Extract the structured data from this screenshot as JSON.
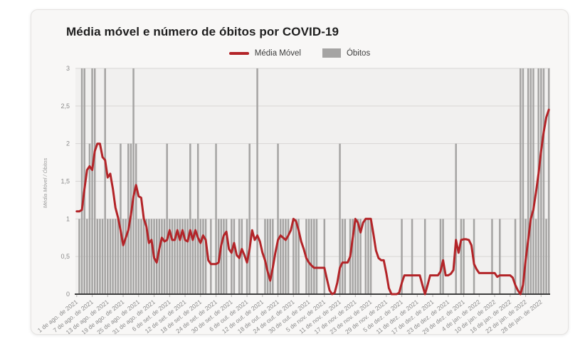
{
  "legend": {
    "items": [
      {
        "label": "Média Móvel",
        "swatch": "line",
        "color": "#b32428"
      },
      {
        "label": "Óbitos",
        "swatch": "bar",
        "color": "#a5a4a3"
      }
    ]
  },
  "chart_data": {
    "type": "mixed",
    "title": "Média móvel e número de óbitos por COVID-19",
    "xlabel": "",
    "ylabel": "Média Móvel / Óbitos",
    "ylim": [
      0,
      3
    ],
    "grid": "horizontal",
    "legend_position": "top",
    "yticks": [
      {
        "value": 0,
        "label": "0"
      },
      {
        "value": 0.5,
        "label": "0,5"
      },
      {
        "value": 1,
        "label": "1"
      },
      {
        "value": 1.5,
        "label": "1,5"
      },
      {
        "value": 2,
        "label": "2"
      },
      {
        "value": 2.5,
        "label": "2,5"
      },
      {
        "value": 3,
        "label": "3"
      }
    ],
    "x_tick_every": 6,
    "x_tick_labels": [
      "1 de ago. de 2021",
      "7 de ago. de 2021",
      "13 de ago. de 2021",
      "19 de ago. de 2021",
      "25 de ago. de 2021",
      "31 de ago. de 2021",
      "6 de set. de 2021",
      "12 de set. de 2021",
      "18 de set. de 2021",
      "24 de set. de 2021",
      "30 de set. de 2021",
      "6 de out. de 2021",
      "12 de out. de 2021",
      "18 de out. de 2021",
      "24 de out. de 2021",
      "30 de out. de 2021",
      "5 de nov. de 2021",
      "11 de nov. de 2021",
      "17 de nov. de 2021",
      "23 de nov. de 2021",
      "29 de nov. de 2021",
      "5 de dez. de 2021",
      "11 de dez. de 2021",
      "17 de dez. de 2021",
      "23 de dez. de 2021",
      "29 de dez. de 2021",
      "4 de jan. de 2022",
      "10 de jan. de 2022",
      "16 de jan. de 2022",
      "22 de jan. de 2022",
      "28 de jan. de 2022"
    ],
    "series": [
      {
        "name": "Média Móvel",
        "type": "line",
        "color": "#b32428",
        "values": [
          1.1,
          1.1,
          1.12,
          1.4,
          1.65,
          1.7,
          1.65,
          1.9,
          2.0,
          2.0,
          1.82,
          1.78,
          1.55,
          1.6,
          1.4,
          1.15,
          1.02,
          0.85,
          0.65,
          0.75,
          0.85,
          1.05,
          1.3,
          1.45,
          1.3,
          1.28,
          1.0,
          0.9,
          0.68,
          0.72,
          0.48,
          0.42,
          0.6,
          0.75,
          0.7,
          0.72,
          0.85,
          0.72,
          0.72,
          0.85,
          0.72,
          0.85,
          0.72,
          0.7,
          0.85,
          0.72,
          0.85,
          0.75,
          0.68,
          0.78,
          0.72,
          0.45,
          0.4,
          0.4,
          0.4,
          0.42,
          0.65,
          0.78,
          0.83,
          0.6,
          0.55,
          0.68,
          0.52,
          0.48,
          0.6,
          0.52,
          0.42,
          0.6,
          0.85,
          0.72,
          0.78,
          0.7,
          0.55,
          0.45,
          0.3,
          0.18,
          0.35,
          0.55,
          0.72,
          0.78,
          0.75,
          0.72,
          0.78,
          0.85,
          1.0,
          0.97,
          0.85,
          0.7,
          0.6,
          0.48,
          0.42,
          0.38,
          0.35,
          0.35,
          0.35,
          0.35,
          0.35,
          0.2,
          0.05,
          0.0,
          0.02,
          0.15,
          0.35,
          0.42,
          0.42,
          0.42,
          0.5,
          0.75,
          1.0,
          0.95,
          0.82,
          0.95,
          1.0,
          1.0,
          1.0,
          0.8,
          0.58,
          0.48,
          0.45,
          0.45,
          0.28,
          0.08,
          0.0,
          0.0,
          0.0,
          0.02,
          0.15,
          0.25,
          0.25,
          0.25,
          0.25,
          0.25,
          0.25,
          0.25,
          0.12,
          0.0,
          0.12,
          0.25,
          0.25,
          0.25,
          0.25,
          0.3,
          0.45,
          0.25,
          0.25,
          0.27,
          0.32,
          0.72,
          0.55,
          0.72,
          0.73,
          0.73,
          0.72,
          0.65,
          0.4,
          0.33,
          0.28,
          0.28,
          0.28,
          0.28,
          0.28,
          0.28,
          0.28,
          0.23,
          0.25,
          0.25,
          0.25,
          0.25,
          0.25,
          0.22,
          0.12,
          0.05,
          0.0,
          0.12,
          0.45,
          0.72,
          1.0,
          1.12,
          1.35,
          1.6,
          1.9,
          2.15,
          2.35,
          2.45
        ]
      },
      {
        "name": "Óbitos",
        "type": "bar",
        "color": "#a5a4a3",
        "values": [
          0,
          1,
          3,
          3,
          1,
          2,
          3,
          3,
          1,
          1,
          1,
          3,
          1,
          1,
          1,
          1,
          1,
          2,
          1,
          1,
          2,
          2,
          3,
          2,
          1,
          1,
          1,
          1,
          1,
          1,
          1,
          1,
          1,
          1,
          1,
          2,
          1,
          1,
          1,
          1,
          1,
          1,
          1,
          1,
          2,
          1,
          1,
          2,
          1,
          1,
          1,
          0,
          1,
          0,
          2,
          1,
          1,
          1,
          1,
          0,
          1,
          1,
          0,
          1,
          1,
          0,
          1,
          2,
          0,
          0,
          3,
          0,
          0,
          1,
          1,
          1,
          1,
          0,
          2,
          1,
          1,
          1,
          1,
          0,
          1,
          1,
          1,
          0,
          0,
          1,
          1,
          1,
          1,
          1,
          0,
          0,
          1,
          0,
          0,
          0,
          0,
          0,
          2,
          1,
          1,
          0,
          1,
          1,
          1,
          1,
          1,
          0,
          1,
          1,
          1,
          0,
          0,
          0,
          0,
          0,
          0,
          0,
          0,
          0,
          0,
          0,
          1,
          0,
          0,
          0,
          1,
          0,
          0,
          0,
          0,
          1,
          0,
          0,
          0,
          0,
          0,
          1,
          1,
          0,
          0,
          0,
          0,
          2,
          0,
          1,
          1,
          0,
          0,
          0,
          1,
          0,
          0,
          0,
          0,
          0,
          0,
          1,
          0,
          0,
          1,
          0,
          0,
          0,
          0,
          0,
          1,
          0,
          3,
          3,
          1,
          3,
          3,
          3,
          1,
          3,
          3,
          3,
          1,
          3
        ]
      }
    ]
  }
}
